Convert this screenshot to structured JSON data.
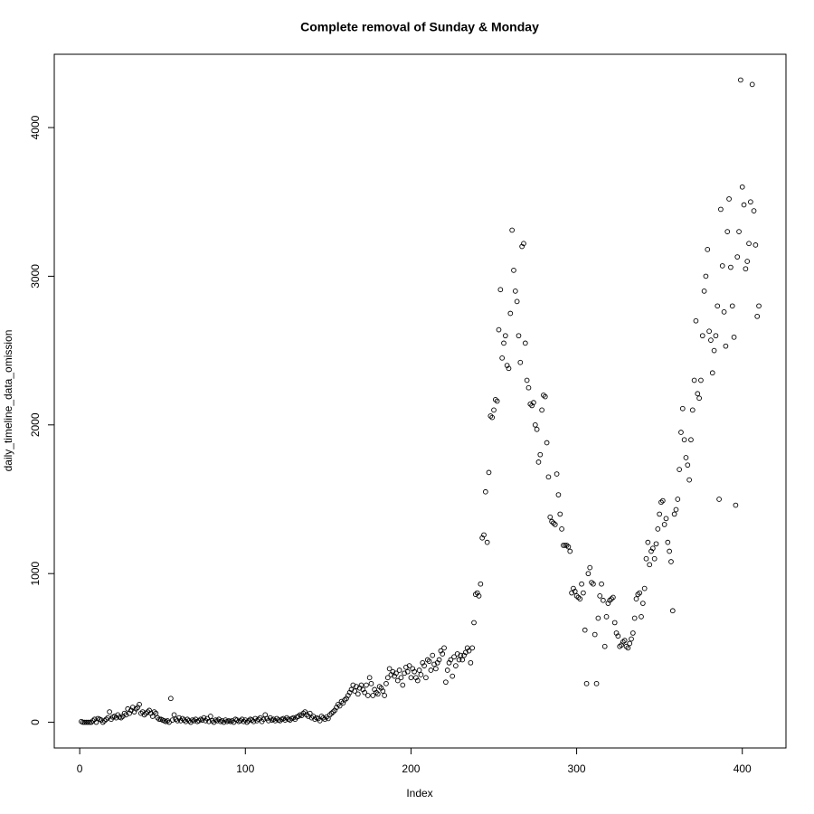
{
  "chart_data": {
    "type": "scatter",
    "title": "Complete removal of Sunday & Monday",
    "x_label": "Index",
    "y_label": "daily_timeline_data_omission",
    "color": "#000000",
    "x": [
      1,
      2,
      3,
      4,
      5,
      6,
      7,
      8,
      9,
      10,
      11,
      12,
      13,
      14,
      15,
      16,
      17,
      18,
      19,
      20,
      21,
      22,
      23,
      24,
      25,
      26,
      27,
      28,
      29,
      30,
      31,
      32,
      33,
      34,
      35,
      36,
      37,
      38,
      39,
      40,
      41,
      42,
      43,
      44,
      45,
      46,
      47,
      48,
      49,
      50,
      51,
      52,
      53,
      54,
      55,
      56,
      57,
      58,
      59,
      60,
      61,
      62,
      63,
      64,
      65,
      66,
      67,
      68,
      69,
      70,
      71,
      72,
      73,
      74,
      75,
      76,
      77,
      78,
      79,
      80,
      81,
      82,
      83,
      84,
      85,
      86,
      87,
      88,
      89,
      90,
      91,
      92,
      93,
      94,
      95,
      96,
      97,
      98,
      99,
      100,
      101,
      102,
      103,
      104,
      105,
      106,
      107,
      108,
      109,
      110,
      111,
      112,
      113,
      114,
      115,
      116,
      117,
      118,
      119,
      120,
      121,
      122,
      123,
      124,
      125,
      126,
      127,
      128,
      129,
      130,
      131,
      132,
      133,
      134,
      135,
      136,
      137,
      138,
      139,
      140,
      141,
      142,
      143,
      144,
      145,
      146,
      147,
      148,
      149,
      150,
      151,
      152,
      153,
      154,
      155,
      156,
      157,
      158,
      159,
      160,
      161,
      162,
      163,
      164,
      165,
      166,
      167,
      168,
      169,
      170,
      171,
      172,
      173,
      174,
      175,
      176,
      177,
      178,
      179,
      180,
      181,
      182,
      183,
      184,
      185,
      186,
      187,
      188,
      189,
      190,
      191,
      192,
      193,
      194,
      195,
      196,
      197,
      198,
      199,
      200,
      201,
      202,
      203,
      204,
      205,
      206,
      207,
      208,
      209,
      210,
      211,
      212,
      213,
      214,
      215,
      216,
      217,
      218,
      219,
      220,
      221,
      222,
      223,
      224,
      225,
      226,
      227,
      228,
      229,
      230,
      231,
      232,
      233,
      234,
      235,
      236,
      237,
      238,
      239,
      240,
      241,
      242,
      243,
      244,
      245,
      246,
      247,
      248,
      249,
      250,
      251,
      252,
      253,
      254,
      255,
      256,
      257,
      258,
      259,
      260,
      261,
      262,
      263,
      264,
      265,
      266,
      267,
      268,
      269,
      270,
      271,
      272,
      273,
      274,
      275,
      276,
      277,
      278,
      279,
      280,
      281,
      282,
      283,
      284,
      285,
      286,
      287,
      288,
      289,
      290,
      291,
      292,
      293,
      294,
      295,
      296,
      297,
      298,
      299,
      300,
      301,
      302,
      303,
      304,
      305,
      306,
      307,
      308,
      309,
      310,
      311,
      312,
      313,
      314,
      315,
      316,
      317,
      318,
      319,
      320,
      321,
      322,
      323,
      324,
      325,
      326,
      327,
      328,
      329,
      330,
      331,
      332,
      333,
      334,
      335,
      336,
      337,
      338,
      339,
      340,
      341,
      342,
      343,
      344,
      345,
      346,
      347,
      348,
      349,
      350,
      351,
      352,
      353,
      354,
      355,
      356,
      357,
      358,
      359,
      360,
      361,
      362,
      363,
      364,
      365,
      366,
      367,
      368,
      369,
      370,
      371,
      372,
      373,
      374,
      375,
      376,
      377,
      378,
      379,
      380,
      381,
      382,
      383,
      384,
      385,
      386,
      387,
      388,
      389,
      390,
      391,
      392,
      393,
      394,
      395,
      396,
      397,
      398,
      399,
      400,
      401,
      402,
      403,
      404,
      405,
      406,
      407,
      408,
      409,
      410
    ],
    "values": [
      5,
      0,
      0,
      0,
      0,
      0,
      0,
      10,
      20,
      0,
      25,
      20,
      15,
      0,
      10,
      20,
      30,
      70,
      20,
      35,
      40,
      30,
      50,
      35,
      30,
      40,
      60,
      50,
      90,
      60,
      80,
      100,
      70,
      90,
      100,
      120,
      60,
      70,
      50,
      60,
      70,
      80,
      60,
      40,
      70,
      60,
      30,
      20,
      20,
      15,
      10,
      5,
      10,
      0,
      160,
      15,
      50,
      20,
      10,
      30,
      10,
      25,
      15,
      5,
      20,
      10,
      0,
      15,
      10,
      20,
      5,
      10,
      20,
      15,
      30,
      10,
      25,
      5,
      40,
      10,
      0,
      15,
      10,
      20,
      5,
      10,
      0,
      15,
      5,
      10,
      5,
      10,
      0,
      20,
      15,
      5,
      10,
      20,
      5,
      15,
      0,
      10,
      20,
      15,
      5,
      25,
      10,
      20,
      30,
      5,
      20,
      50,
      25,
      10,
      30,
      15,
      20,
      10,
      25,
      15,
      10,
      20,
      25,
      15,
      30,
      20,
      15,
      25,
      30,
      20,
      35,
      40,
      50,
      45,
      60,
      70,
      50,
      40,
      60,
      30,
      40,
      20,
      30,
      25,
      10,
      40,
      30,
      20,
      35,
      25,
      50,
      60,
      70,
      80,
      100,
      120,
      110,
      140,
      130,
      150,
      160,
      180,
      200,
      220,
      250,
      210,
      240,
      190,
      230,
      250,
      220,
      200,
      250,
      180,
      300,
      260,
      180,
      220,
      200,
      190,
      240,
      230,
      210,
      180,
      260,
      300,
      360,
      320,
      340,
      310,
      330,
      280,
      350,
      300,
      250,
      330,
      370,
      340,
      380,
      300,
      360,
      340,
      300,
      280,
      350,
      320,
      400,
      380,
      300,
      420,
      410,
      350,
      450,
      390,
      360,
      400,
      420,
      480,
      460,
      500,
      270,
      350,
      400,
      420,
      310,
      440,
      380,
      460,
      420,
      450,
      420,
      450,
      470,
      500,
      480,
      400,
      500,
      670,
      860,
      870,
      850,
      930,
      1240,
      1260,
      1550,
      1210,
      1680,
      2060,
      2050,
      2100,
      2170,
      2160,
      2640,
      2910,
      2450,
      2550,
      2600,
      2400,
      2380,
      2750,
      3310,
      3040,
      2900,
      2830,
      2600,
      2420,
      3200,
      3220,
      2550,
      2300,
      2250,
      2140,
      2130,
      2150,
      2000,
      1970,
      1750,
      1800,
      2100,
      2200,
      2190,
      1880,
      1650,
      1380,
      1350,
      1340,
      1330,
      1670,
      1530,
      1400,
      1300,
      1190,
      1190,
      1190,
      1180,
      1150,
      870,
      900,
      880,
      850,
      840,
      830,
      930,
      870,
      620,
      260,
      1000,
      1040,
      940,
      930,
      590,
      260,
      700,
      850,
      930,
      820,
      510,
      710,
      800,
      820,
      830,
      840,
      670,
      600,
      580,
      510,
      520,
      540,
      550,
      510,
      500,
      530,
      560,
      600,
      700,
      830,
      860,
      870,
      710,
      800,
      900,
      1100,
      1210,
      1060,
      1150,
      1170,
      1100,
      1200,
      1300,
      1400,
      1480,
      1490,
      1330,
      1370,
      1210,
      1150,
      1080,
      750,
      1400,
      1430,
      1500,
      1700,
      1950,
      2110,
      1900,
      1780,
      1730,
      1630,
      1900,
      2100,
      2300,
      2700,
      2210,
      2180,
      2300,
      2600,
      2900,
      3000,
      3180,
      2630,
      2570,
      2350,
      2500,
      2600,
      2800,
      1500,
      3450,
      3070,
      2760,
      2530,
      3300,
      3520,
      3060,
      2800,
      2590,
      1460,
      3130,
      3300,
      4320,
      3600,
      3480,
      3050,
      3100,
      3220,
      3500,
      4290,
      3440,
      3210,
      2730,
      2800
    ],
    "xlim": [
      -15.36,
      426.36
    ],
    "ylim": [
      -173,
      4493
    ],
    "xticks": [
      0,
      100,
      200,
      300,
      400
    ],
    "yticks": [
      0,
      1000,
      2000,
      3000,
      4000
    ]
  }
}
